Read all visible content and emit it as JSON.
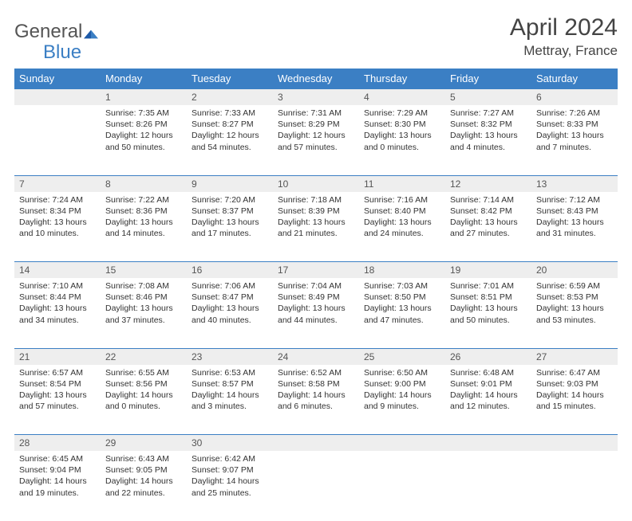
{
  "logo": {
    "text1": "General",
    "text2": "Blue"
  },
  "title": "April 2024",
  "location": "Mettray, France",
  "colors": {
    "header_bg": "#3b7fc4",
    "header_text": "#ffffff",
    "daynum_bg": "#eeeeee",
    "border": "#3b7fc4",
    "body_text": "#333333"
  },
  "day_headers": [
    "Sunday",
    "Monday",
    "Tuesday",
    "Wednesday",
    "Thursday",
    "Friday",
    "Saturday"
  ],
  "weeks": [
    {
      "nums": [
        "",
        "1",
        "2",
        "3",
        "4",
        "5",
        "6"
      ],
      "cells": [
        null,
        {
          "sunrise": "7:35 AM",
          "sunset": "8:26 PM",
          "daylight": "12 hours and 50 minutes."
        },
        {
          "sunrise": "7:33 AM",
          "sunset": "8:27 PM",
          "daylight": "12 hours and 54 minutes."
        },
        {
          "sunrise": "7:31 AM",
          "sunset": "8:29 PM",
          "daylight": "12 hours and 57 minutes."
        },
        {
          "sunrise": "7:29 AM",
          "sunset": "8:30 PM",
          "daylight": "13 hours and 0 minutes."
        },
        {
          "sunrise": "7:27 AM",
          "sunset": "8:32 PM",
          "daylight": "13 hours and 4 minutes."
        },
        {
          "sunrise": "7:26 AM",
          "sunset": "8:33 PM",
          "daylight": "13 hours and 7 minutes."
        }
      ]
    },
    {
      "nums": [
        "7",
        "8",
        "9",
        "10",
        "11",
        "12",
        "13"
      ],
      "cells": [
        {
          "sunrise": "7:24 AM",
          "sunset": "8:34 PM",
          "daylight": "13 hours and 10 minutes."
        },
        {
          "sunrise": "7:22 AM",
          "sunset": "8:36 PM",
          "daylight": "13 hours and 14 minutes."
        },
        {
          "sunrise": "7:20 AM",
          "sunset": "8:37 PM",
          "daylight": "13 hours and 17 minutes."
        },
        {
          "sunrise": "7:18 AM",
          "sunset": "8:39 PM",
          "daylight": "13 hours and 21 minutes."
        },
        {
          "sunrise": "7:16 AM",
          "sunset": "8:40 PM",
          "daylight": "13 hours and 24 minutes."
        },
        {
          "sunrise": "7:14 AM",
          "sunset": "8:42 PM",
          "daylight": "13 hours and 27 minutes."
        },
        {
          "sunrise": "7:12 AM",
          "sunset": "8:43 PM",
          "daylight": "13 hours and 31 minutes."
        }
      ]
    },
    {
      "nums": [
        "14",
        "15",
        "16",
        "17",
        "18",
        "19",
        "20"
      ],
      "cells": [
        {
          "sunrise": "7:10 AM",
          "sunset": "8:44 PM",
          "daylight": "13 hours and 34 minutes."
        },
        {
          "sunrise": "7:08 AM",
          "sunset": "8:46 PM",
          "daylight": "13 hours and 37 minutes."
        },
        {
          "sunrise": "7:06 AM",
          "sunset": "8:47 PM",
          "daylight": "13 hours and 40 minutes."
        },
        {
          "sunrise": "7:04 AM",
          "sunset": "8:49 PM",
          "daylight": "13 hours and 44 minutes."
        },
        {
          "sunrise": "7:03 AM",
          "sunset": "8:50 PM",
          "daylight": "13 hours and 47 minutes."
        },
        {
          "sunrise": "7:01 AM",
          "sunset": "8:51 PM",
          "daylight": "13 hours and 50 minutes."
        },
        {
          "sunrise": "6:59 AM",
          "sunset": "8:53 PM",
          "daylight": "13 hours and 53 minutes."
        }
      ]
    },
    {
      "nums": [
        "21",
        "22",
        "23",
        "24",
        "25",
        "26",
        "27"
      ],
      "cells": [
        {
          "sunrise": "6:57 AM",
          "sunset": "8:54 PM",
          "daylight": "13 hours and 57 minutes."
        },
        {
          "sunrise": "6:55 AM",
          "sunset": "8:56 PM",
          "daylight": "14 hours and 0 minutes."
        },
        {
          "sunrise": "6:53 AM",
          "sunset": "8:57 PM",
          "daylight": "14 hours and 3 minutes."
        },
        {
          "sunrise": "6:52 AM",
          "sunset": "8:58 PM",
          "daylight": "14 hours and 6 minutes."
        },
        {
          "sunrise": "6:50 AM",
          "sunset": "9:00 PM",
          "daylight": "14 hours and 9 minutes."
        },
        {
          "sunrise": "6:48 AM",
          "sunset": "9:01 PM",
          "daylight": "14 hours and 12 minutes."
        },
        {
          "sunrise": "6:47 AM",
          "sunset": "9:03 PM",
          "daylight": "14 hours and 15 minutes."
        }
      ]
    },
    {
      "nums": [
        "28",
        "29",
        "30",
        "",
        "",
        "",
        ""
      ],
      "cells": [
        {
          "sunrise": "6:45 AM",
          "sunset": "9:04 PM",
          "daylight": "14 hours and 19 minutes."
        },
        {
          "sunrise": "6:43 AM",
          "sunset": "9:05 PM",
          "daylight": "14 hours and 22 minutes."
        },
        {
          "sunrise": "6:42 AM",
          "sunset": "9:07 PM",
          "daylight": "14 hours and 25 minutes."
        },
        null,
        null,
        null,
        null
      ]
    }
  ],
  "labels": {
    "sunrise": "Sunrise: ",
    "sunset": "Sunset: ",
    "daylight": "Daylight: "
  }
}
